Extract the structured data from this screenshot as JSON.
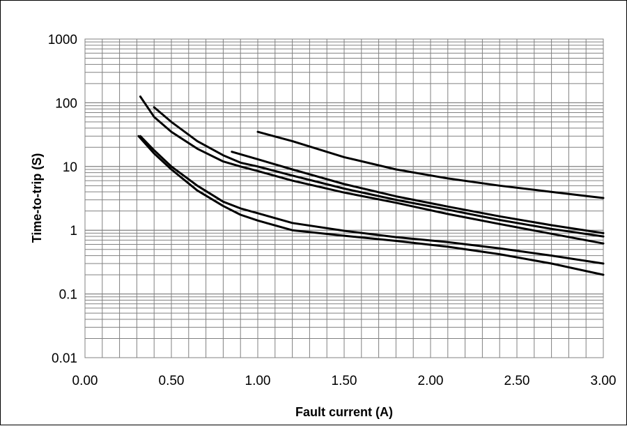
{
  "chart_data": {
    "type": "line",
    "title": "",
    "xlabel": "Fault current (A)",
    "ylabel": "Time-to-trip (S)",
    "xlim": [
      0.0,
      3.0
    ],
    "ylim": [
      0.01,
      1000
    ],
    "y_scale": "log",
    "grid": true,
    "x_ticks": [
      "0.00",
      "0.50",
      "1.00",
      "1.50",
      "2.00",
      "2.50",
      "3.00"
    ],
    "y_ticks": [
      "0.01",
      "0.1",
      "1",
      "10",
      "100",
      "1000"
    ],
    "line_color": "#000000",
    "grid_color": "#808080",
    "series": [
      {
        "x": [
          0.32,
          0.4,
          0.5,
          0.65,
          0.8,
          0.9,
          1.0,
          1.2,
          1.5,
          1.8,
          2.1,
          2.4,
          2.7,
          3.0
        ],
        "y": [
          30,
          18,
          10,
          5.0,
          2.8,
          2.2,
          1.85,
          1.3,
          0.98,
          0.78,
          0.65,
          0.52,
          0.4,
          0.3
        ]
      },
      {
        "x": [
          0.31,
          0.4,
          0.5,
          0.65,
          0.8,
          0.9,
          1.0,
          1.2,
          1.5,
          1.8,
          2.1,
          2.4,
          2.7,
          3.0
        ],
        "y": [
          30,
          16,
          9.0,
          4.2,
          2.4,
          1.75,
          1.42,
          1.0,
          0.82,
          0.68,
          0.55,
          0.42,
          0.3,
          0.2
        ]
      },
      {
        "x": [
          0.32,
          0.4,
          0.5,
          0.65,
          0.8,
          0.9,
          1.0,
          1.2,
          1.5,
          1.8,
          2.1,
          2.4,
          2.7,
          3.0
        ],
        "y": [
          125,
          60,
          35,
          19,
          12,
          10,
          8.5,
          6.0,
          3.9,
          2.7,
          1.8,
          1.25,
          0.88,
          0.62
        ]
      },
      {
        "x": [
          0.4,
          0.5,
          0.65,
          0.8,
          0.9,
          1.0,
          1.2,
          1.5,
          1.8,
          2.1,
          2.4,
          2.7,
          3.0
        ],
        "y": [
          85,
          50,
          25,
          15,
          11.5,
          10,
          7.2,
          4.5,
          3.0,
          2.1,
          1.45,
          1.05,
          0.8
        ]
      },
      {
        "x": [
          0.85,
          1.0,
          1.2,
          1.5,
          1.8,
          2.1,
          2.4,
          2.7,
          3.0
        ],
        "y": [
          17,
          13,
          9.0,
          5.3,
          3.4,
          2.35,
          1.65,
          1.2,
          0.9
        ]
      },
      {
        "x": [
          1.0,
          1.2,
          1.5,
          1.8,
          2.1,
          2.4,
          2.7,
          3.0
        ],
        "y": [
          35,
          25,
          14,
          9.0,
          6.5,
          5.0,
          4.0,
          3.2
        ]
      }
    ]
  }
}
